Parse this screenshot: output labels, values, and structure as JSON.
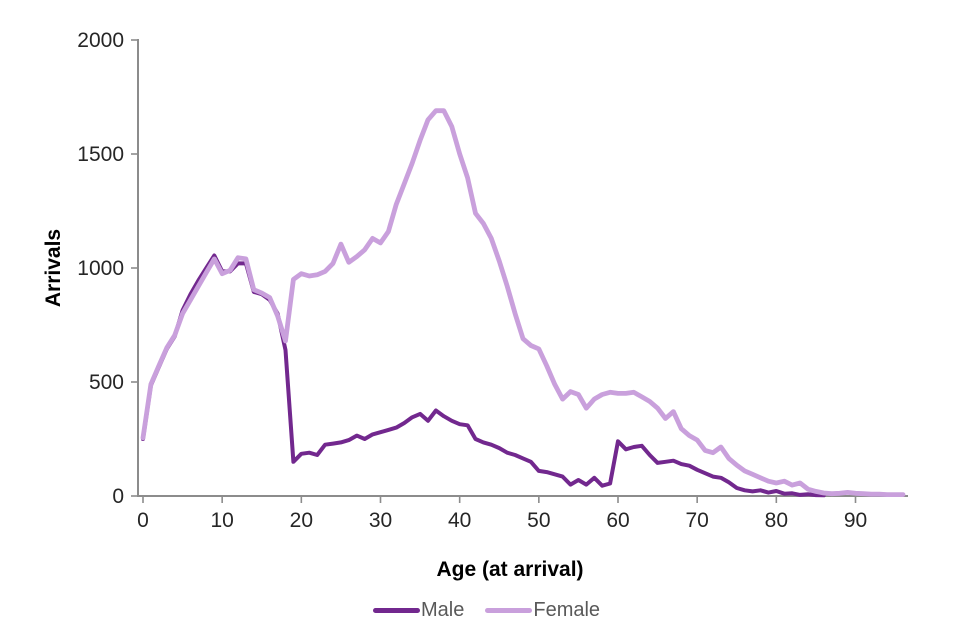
{
  "chart_data": {
    "type": "line",
    "title": "",
    "xlabel": "Age (at arrival)",
    "ylabel": "Arrivals",
    "xlim": [
      0,
      96
    ],
    "ylim": [
      0,
      2000
    ],
    "grid": false,
    "legend_position": "bottom-center",
    "x_ticks": [
      0,
      10,
      20,
      30,
      40,
      50,
      60,
      70,
      80,
      90
    ],
    "y_ticks": [
      0,
      500,
      1000,
      1500,
      2000
    ],
    "x": [
      0,
      1,
      2,
      3,
      4,
      5,
      6,
      7,
      8,
      9,
      10,
      11,
      12,
      13,
      14,
      15,
      16,
      17,
      18,
      19,
      20,
      21,
      22,
      23,
      24,
      25,
      26,
      27,
      28,
      29,
      30,
      31,
      32,
      33,
      34,
      35,
      36,
      37,
      38,
      39,
      40,
      41,
      42,
      43,
      44,
      45,
      46,
      47,
      48,
      49,
      50,
      51,
      52,
      53,
      54,
      55,
      56,
      57,
      58,
      59,
      60,
      61,
      62,
      63,
      64,
      65,
      66,
      67,
      68,
      69,
      70,
      71,
      72,
      73,
      74,
      75,
      76,
      77,
      78,
      79,
      80,
      81,
      82,
      83,
      84,
      85,
      86,
      87,
      88,
      89,
      90,
      91,
      92,
      93,
      94,
      95,
      96
    ],
    "series": [
      {
        "name": "Male",
        "color": "#72288E",
        "values": [
          250,
          485,
          565,
          645,
          700,
          815,
          885,
          945,
          1000,
          1055,
          985,
          985,
          1020,
          1020,
          895,
          885,
          860,
          800,
          640,
          150,
          185,
          190,
          180,
          225,
          230,
          235,
          245,
          265,
          250,
          270,
          280,
          290,
          300,
          320,
          345,
          360,
          330,
          375,
          350,
          330,
          315,
          310,
          250,
          235,
          225,
          210,
          190,
          180,
          165,
          150,
          110,
          105,
          95,
          85,
          50,
          70,
          50,
          80,
          45,
          55,
          240,
          205,
          215,
          220,
          180,
          145,
          150,
          155,
          140,
          133,
          115,
          100,
          85,
          80,
          60,
          35,
          25,
          20,
          25,
          15,
          22,
          10,
          12,
          5,
          8,
          4,
          3,
          null,
          null,
          null,
          null,
          null,
          null,
          null,
          null,
          null,
          null
        ]
      },
      {
        "name": "Female",
        "color": "#C9A0DC",
        "values": [
          255,
          490,
          570,
          650,
          705,
          800,
          860,
          920,
          980,
          1040,
          975,
          990,
          1045,
          1040,
          905,
          890,
          870,
          790,
          680,
          950,
          975,
          965,
          970,
          985,
          1020,
          1105,
          1025,
          1050,
          1080,
          1130,
          1110,
          1160,
          1280,
          1370,
          1460,
          1560,
          1650,
          1690,
          1690,
          1620,
          1500,
          1395,
          1240,
          1195,
          1130,
          1030,
          920,
          800,
          690,
          660,
          645,
          570,
          490,
          425,
          458,
          445,
          385,
          425,
          445,
          455,
          450,
          450,
          455,
          435,
          415,
          385,
          340,
          370,
          295,
          265,
          245,
          200,
          190,
          215,
          165,
          135,
          110,
          95,
          80,
          65,
          57,
          65,
          48,
          57,
          30,
          20,
          13,
          10,
          12,
          16,
          12,
          10,
          8,
          8,
          6,
          6,
          6
        ]
      }
    ],
    "axis_color": "#8C8C8C",
    "tick_label_color": "#262626",
    "background_color": "#FFFFFF"
  }
}
